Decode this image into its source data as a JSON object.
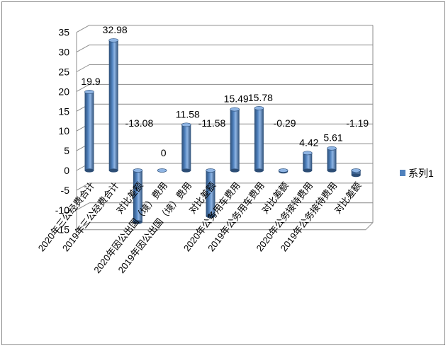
{
  "chart_data": {
    "type": "bar",
    "style": "3d-cylinder",
    "categories": [
      "2020年三公经费合计",
      "2019年三公经费合计",
      "对比差额",
      "2020年因公出国（境）费用",
      "2019年因公出国（境）费用",
      "对比差额",
      "2020年公务用车费用",
      "2019年公务用车费用",
      "对比差额",
      "2020年公务接待费用",
      "2019年公务接待费用",
      "对比差额"
    ],
    "series": [
      {
        "name": "系列1",
        "values": [
          19.9,
          32.98,
          -13.08,
          0,
          11.58,
          -11.58,
          15.49,
          15.78,
          -0.29,
          4.42,
          5.61,
          -1.19
        ],
        "labels": [
          "19.9",
          "32.98",
          "-13.08",
          "0",
          "11.58",
          "-11.58",
          "15.49",
          "15.78",
          "-0.29",
          "4.42",
          "5.61",
          "-1.19"
        ],
        "color": "#4f81bd"
      }
    ],
    "yticks": [
      "-15",
      "-10",
      "-5",
      "0",
      "5",
      "10",
      "15",
      "20",
      "25",
      "30",
      "35"
    ],
    "ylim": [
      -15,
      35
    ],
    "grid": true,
    "legend": "right",
    "title": "",
    "xlabel": "",
    "ylabel": ""
  },
  "colors": {
    "bar": "#4f81bd",
    "bar_dark": "#2c4d75",
    "bar_light": "#8eb4e3",
    "grid": "#8c8c8c",
    "wall": "#ffffff"
  }
}
